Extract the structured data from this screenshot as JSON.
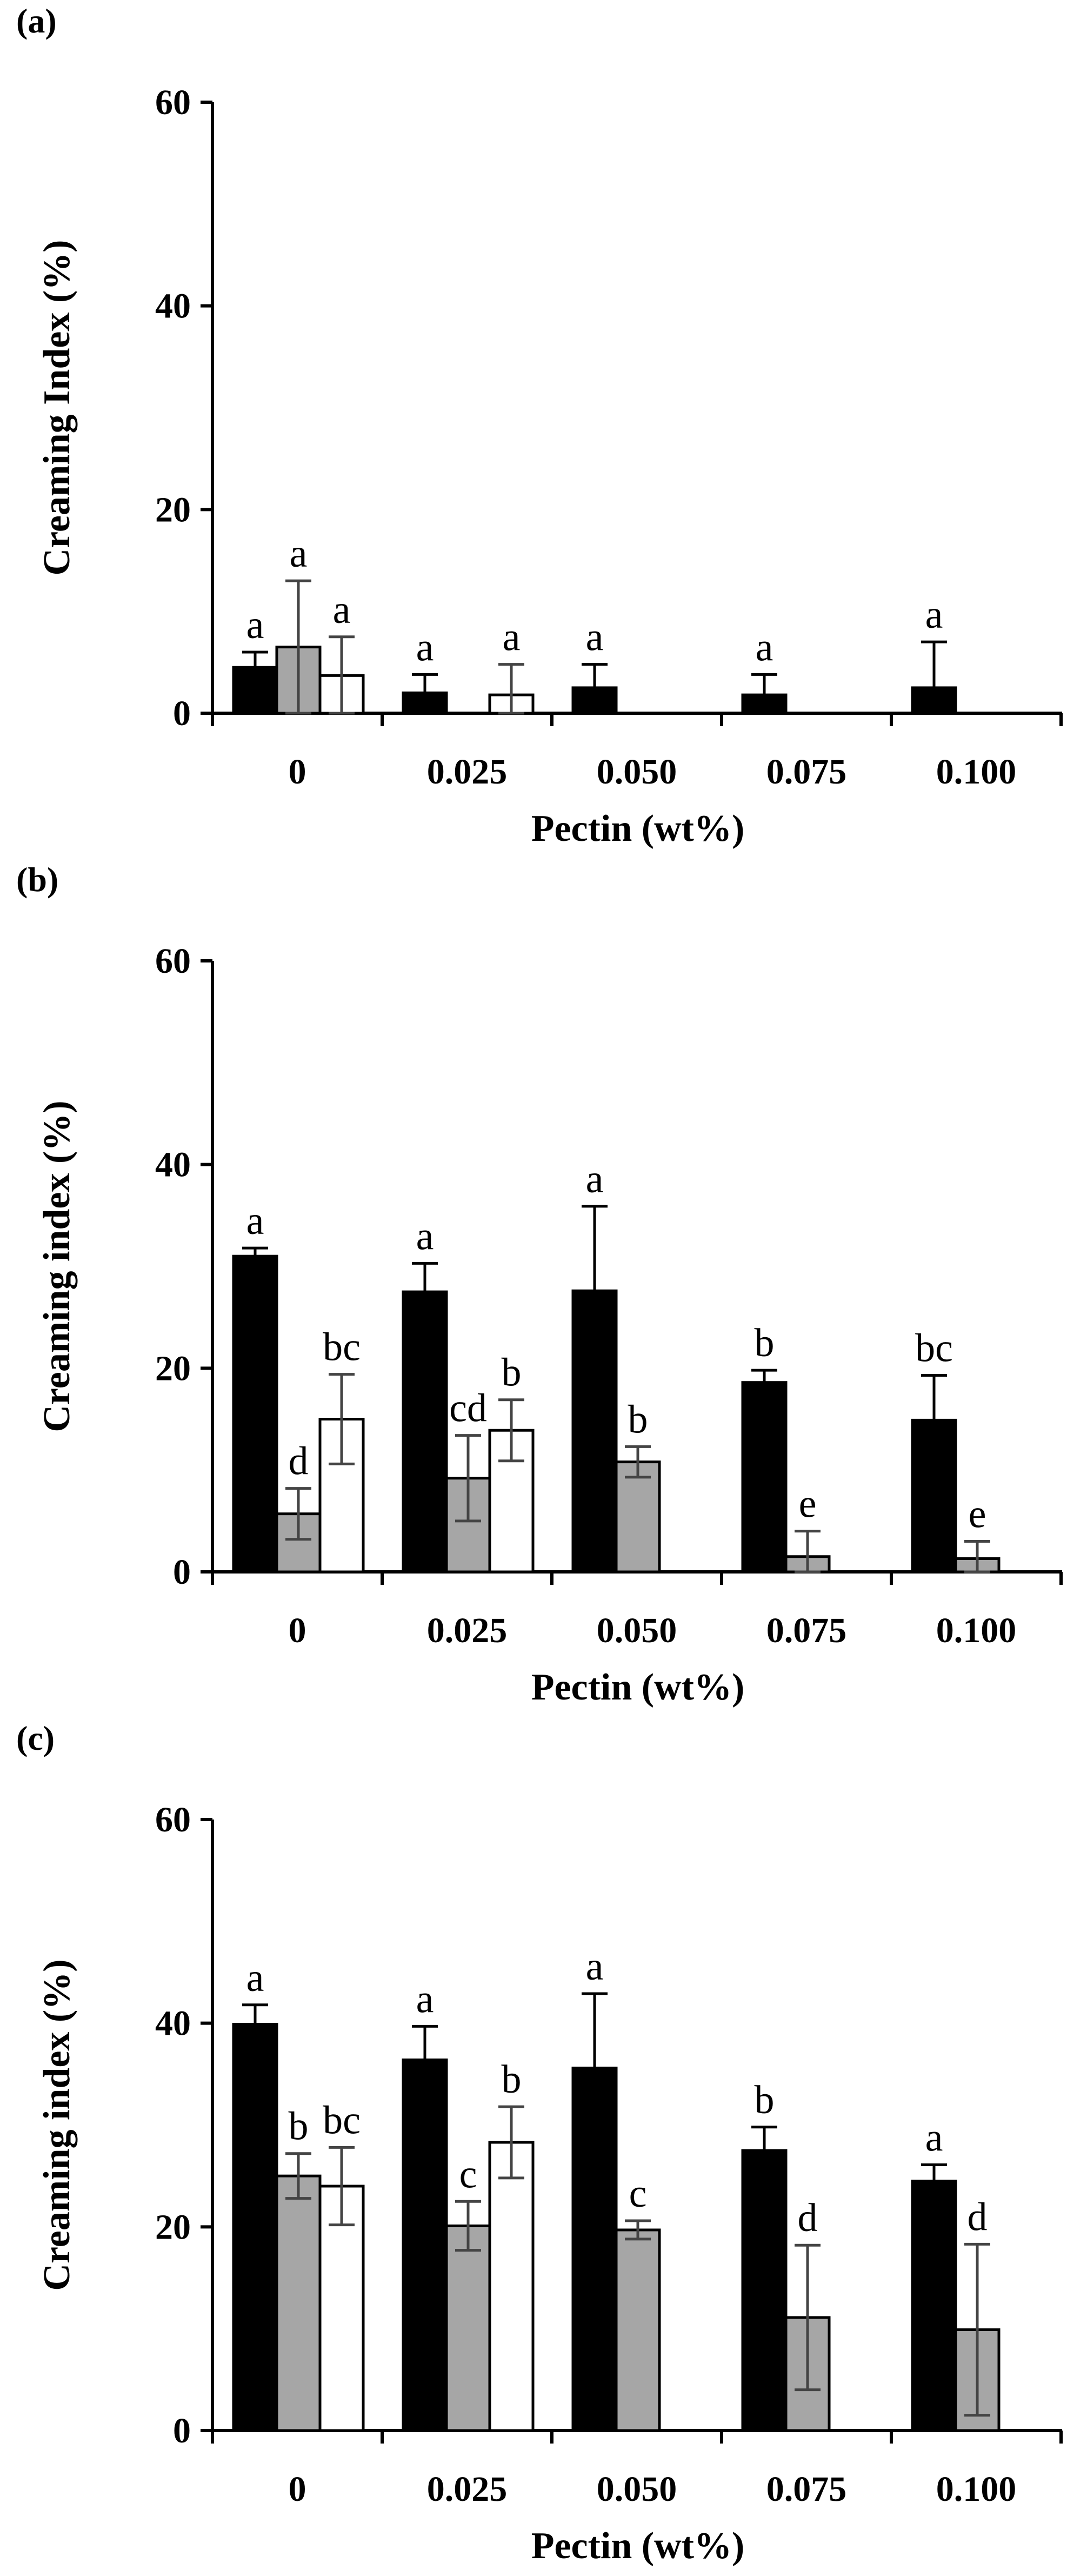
{
  "chart_data": [
    {
      "type": "bar",
      "panel_label": "(a)",
      "ylabel": "Creaming Index (%)",
      "xlabel": "Pectin (wt%)",
      "categories": [
        "0",
        "0.025",
        "0.050",
        "0.075",
        "0.100"
      ],
      "ylim": [
        0,
        60
      ],
      "yticks": [
        0,
        20,
        40,
        60
      ],
      "series": [
        {
          "name": "black",
          "color": "#000000",
          "values": [
            4.5,
            2.0,
            2.5,
            1.8,
            2.5
          ],
          "errors": [
            1.5,
            1.8,
            2.3,
            2.0,
            4.5
          ],
          "letters": [
            "a",
            "a",
            "a",
            "a",
            "a"
          ]
        },
        {
          "name": "gray",
          "color": "#a6a6a6",
          "values": [
            6.5,
            null,
            null,
            null,
            null
          ],
          "errors": [
            6.5,
            null,
            null,
            null,
            null
          ],
          "letters": [
            "a",
            null,
            null,
            null,
            null
          ]
        },
        {
          "name": "white",
          "color": "#ffffff",
          "values": [
            3.7,
            1.8,
            null,
            null,
            null
          ],
          "errors": [
            3.8,
            3.0,
            null,
            null,
            null
          ],
          "letters": [
            "a",
            "a",
            null,
            null,
            null
          ]
        }
      ]
    },
    {
      "type": "bar",
      "panel_label": "(b)",
      "ylabel": "Creaming index (%)",
      "xlabel": "Pectin (wt%)",
      "categories": [
        "0",
        "0.025",
        "0.050",
        "0.075",
        "0.100"
      ],
      "ylim": [
        0,
        60
      ],
      "yticks": [
        0,
        20,
        40,
        60
      ],
      "series": [
        {
          "name": "black",
          "color": "#000000",
          "values": [
            31.0,
            27.5,
            27.6,
            18.6,
            14.9
          ],
          "errors": [
            0.8,
            2.8,
            8.3,
            1.2,
            4.4
          ],
          "letters": [
            "a",
            "a",
            "a",
            "b",
            "bc"
          ]
        },
        {
          "name": "gray",
          "color": "#a6a6a6",
          "values": [
            5.7,
            9.2,
            10.8,
            1.5,
            1.3
          ],
          "errors": [
            2.5,
            4.2,
            1.5,
            2.5,
            1.7
          ],
          "letters": [
            "d",
            "cd",
            "b",
            "e",
            "e"
          ]
        },
        {
          "name": "white",
          "color": "#ffffff",
          "values": [
            15.0,
            13.9,
            null,
            null,
            null
          ],
          "errors": [
            4.4,
            3.0,
            null,
            null,
            null
          ],
          "letters": [
            "bc",
            "b",
            null,
            null,
            null
          ]
        }
      ]
    },
    {
      "type": "bar",
      "panel_label": "(c)",
      "ylabel": "Creaming index (%)",
      "xlabel": "Pectin (wt%)",
      "categories": [
        "0",
        "0.025",
        "0.050",
        "0.075",
        "0.100"
      ],
      "ylim": [
        0,
        60
      ],
      "yticks": [
        0,
        20,
        40,
        60
      ],
      "series": [
        {
          "name": "black",
          "color": "#000000",
          "values": [
            39.9,
            36.4,
            35.6,
            27.5,
            24.5
          ],
          "errors": [
            1.9,
            3.3,
            7.3,
            2.3,
            1.6
          ],
          "letters": [
            "a",
            "a",
            "a",
            "b",
            "a"
          ]
        },
        {
          "name": "gray",
          "color": "#a6a6a6",
          "values": [
            25.0,
            20.1,
            19.7,
            11.1,
            9.9
          ],
          "errors": [
            2.2,
            2.4,
            0.9,
            7.1,
            8.4
          ],
          "letters": [
            "b",
            "c",
            "c",
            "d",
            "d"
          ]
        },
        {
          "name": "white",
          "color": "#ffffff",
          "values": [
            24.0,
            28.3,
            null,
            null,
            null
          ],
          "errors": [
            3.8,
            3.5,
            null,
            null,
            null
          ],
          "letters": [
            "bc",
            "b",
            null,
            null,
            null
          ]
        }
      ]
    }
  ]
}
